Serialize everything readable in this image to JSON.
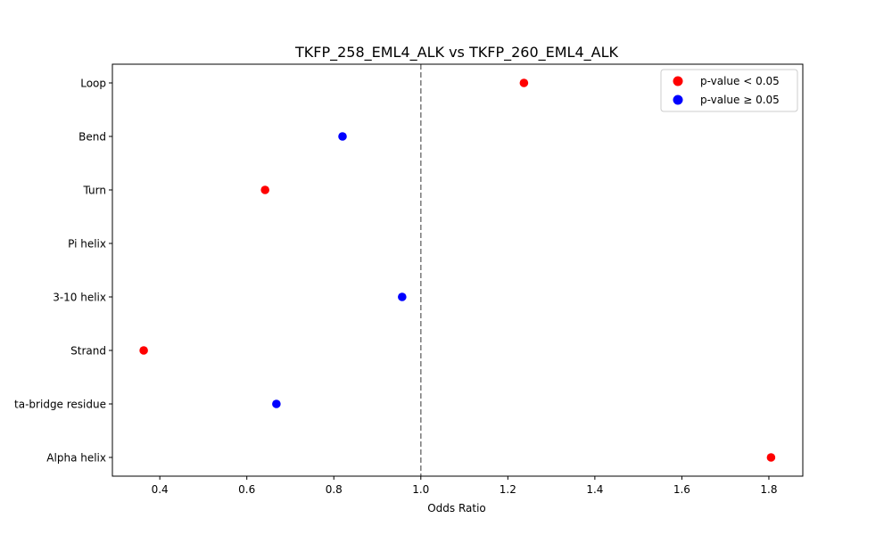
{
  "chart_data": {
    "type": "scatter",
    "title": "TKFP_258_EML4_ALK vs TKFP_260_EML4_ALK",
    "xlabel": "Odds Ratio",
    "ylabel": "",
    "xlim": [
      0.291,
      1.878
    ],
    "xticks": [
      0.4,
      0.6,
      0.8,
      1.0,
      1.2,
      1.4,
      1.6,
      1.8
    ],
    "xtick_labels": [
      "0.4",
      "0.6",
      "0.8",
      "1.0",
      "1.2",
      "1.4",
      "1.6",
      "1.8"
    ],
    "categories": [
      "Loop",
      "Bend",
      "Turn",
      "Pi helix",
      "3-10 helix",
      "Strand",
      "Beta-bridge residue",
      "Alpha helix"
    ],
    "category_labels_visible": [
      "Loop",
      "Bend",
      "Turn",
      "Pi helix",
      "3-10 helix",
      "Strand",
      "ta-bridge residue",
      "Alpha helix"
    ],
    "points": [
      {
        "category": "Loop",
        "odds_ratio": 1.237,
        "significant": true
      },
      {
        "category": "Bend",
        "odds_ratio": 0.82,
        "significant": false
      },
      {
        "category": "Turn",
        "odds_ratio": 0.642,
        "significant": true
      },
      {
        "category": "Pi helix",
        "odds_ratio": null,
        "significant": null
      },
      {
        "category": "3-10 helix",
        "odds_ratio": 0.957,
        "significant": false
      },
      {
        "category": "Strand",
        "odds_ratio": 0.363,
        "significant": true
      },
      {
        "category": "Beta-bridge residue",
        "odds_ratio": 0.668,
        "significant": false
      },
      {
        "category": "Alpha helix",
        "odds_ratio": 1.805,
        "significant": true
      }
    ],
    "reference_line": {
      "x": 1.0,
      "style": "dashed",
      "color": "#808080"
    },
    "legend": {
      "position": "upper right",
      "entries": [
        {
          "label": "p-value < 0.05",
          "color": "#ff0000"
        },
        {
          "label": "p-value ≥ 0.05",
          "color": "#0000ff"
        }
      ]
    },
    "grid": false
  },
  "colors": {
    "significant": "#ff0000",
    "not_significant": "#0000ff",
    "reference": "#808080"
  }
}
